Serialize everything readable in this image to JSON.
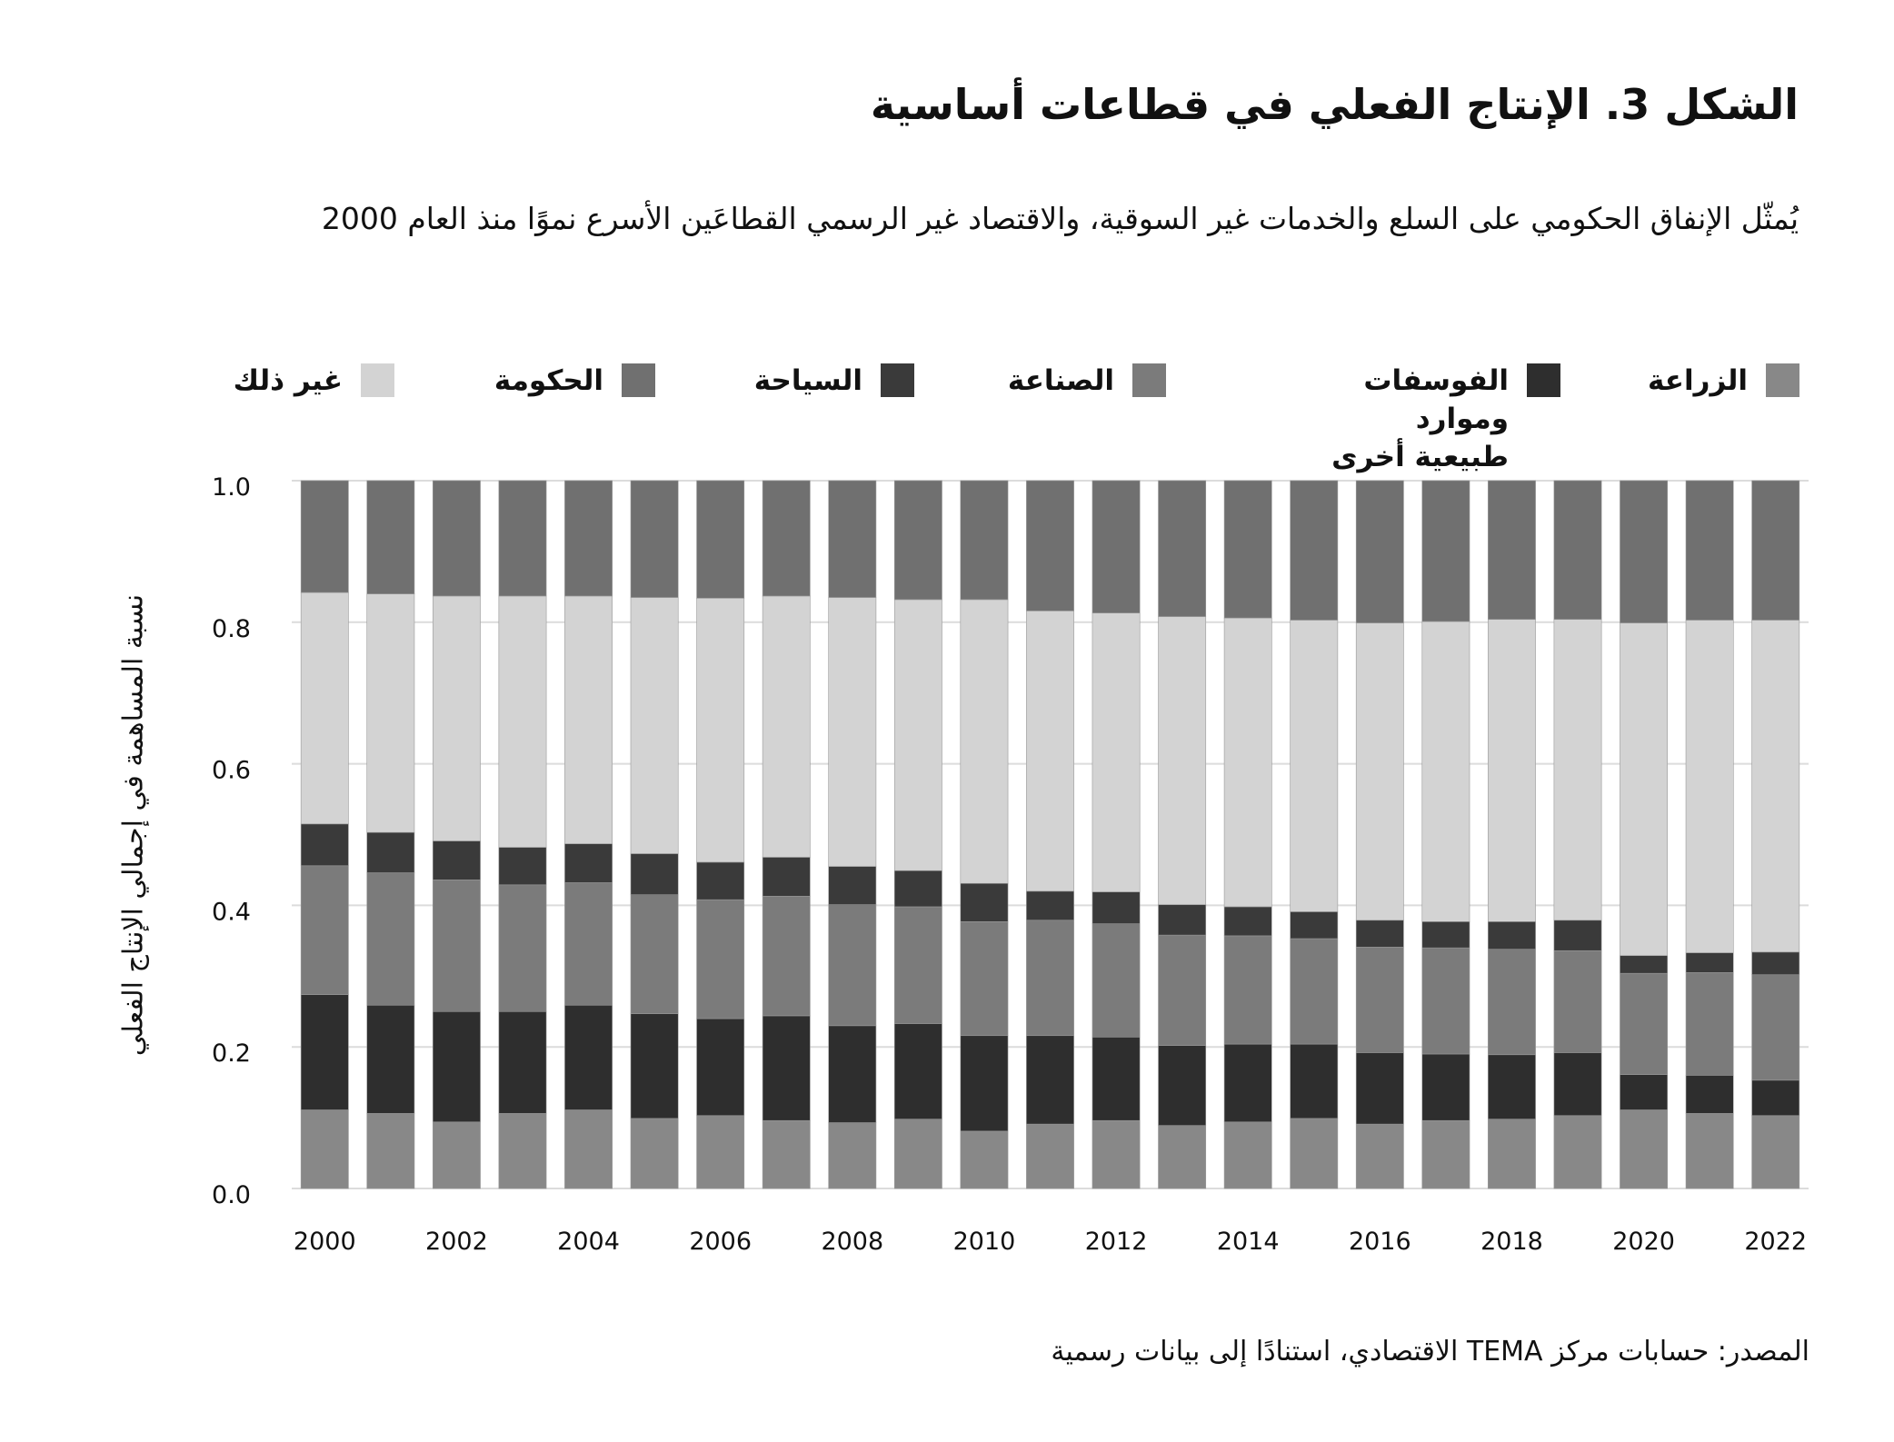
{
  "title": "الشكل 3. الإنتاج الفعلي في قطاعات أساسية",
  "subtitle": "يُمثّل الإنفاق الحكومي على السلع والخدمات غير السوقية، والاقتصاد غير الرسمي القطاعَين الأسرع نموًا منذ العام 2000",
  "source": "المصدر: حسابات مركز TEMA الاقتصادي، استنادًا إلى بيانات رسمية",
  "chart_data": {
    "type": "bar",
    "stacked": true,
    "ylabel": "نسبة المساهمة في إجمالي الإنتاج الفعلي",
    "xlabel": "",
    "ylim": [
      0,
      1.0
    ],
    "yticks": [
      "0.0",
      "0.2",
      "0.4",
      "0.6",
      "0.8",
      "1.0"
    ],
    "xtick_labels": [
      "2000",
      "2002",
      "2004",
      "2006",
      "2008",
      "2010",
      "2012",
      "2014",
      "2016",
      "2018",
      "2020",
      "2022"
    ],
    "grid": true,
    "legend_position": "top",
    "categories": [
      "2000",
      "2001",
      "2002",
      "2003",
      "2004",
      "2005",
      "2006",
      "2007",
      "2008",
      "2009",
      "2010",
      "2011",
      "2012",
      "2013",
      "2014",
      "2015",
      "2016",
      "2017",
      "2018",
      "2019",
      "2020",
      "2021",
      "2022"
    ],
    "series": [
      {
        "name": "الزراعة",
        "color": "#888888",
        "values": [
          0.111,
          0.106,
          0.094,
          0.106,
          0.111,
          0.099,
          0.103,
          0.096,
          0.093,
          0.098,
          0.081,
          0.091,
          0.096,
          0.089,
          0.094,
          0.099,
          0.091,
          0.096,
          0.098,
          0.103,
          0.111,
          0.106,
          0.103
        ]
      },
      {
        "name": "الفوسفات وموارد طبيعية أخرى",
        "color": "#2e2e2e",
        "values": [
          0.163,
          0.153,
          0.156,
          0.144,
          0.148,
          0.148,
          0.137,
          0.148,
          0.137,
          0.135,
          0.135,
          0.125,
          0.118,
          0.113,
          0.11,
          0.105,
          0.101,
          0.094,
          0.091,
          0.089,
          0.05,
          0.054,
          0.05
        ]
      },
      {
        "name": "الصناعة",
        "color": "#7b7b7b",
        "values": [
          0.182,
          0.187,
          0.186,
          0.179,
          0.173,
          0.168,
          0.168,
          0.169,
          0.171,
          0.165,
          0.161,
          0.163,
          0.16,
          0.156,
          0.153,
          0.149,
          0.149,
          0.15,
          0.149,
          0.144,
          0.143,
          0.145,
          0.149
        ]
      },
      {
        "name": "السياحة",
        "color": "#3a3a3a",
        "values": [
          0.059,
          0.057,
          0.055,
          0.053,
          0.055,
          0.058,
          0.053,
          0.055,
          0.054,
          0.051,
          0.054,
          0.041,
          0.045,
          0.043,
          0.041,
          0.038,
          0.038,
          0.037,
          0.039,
          0.043,
          0.025,
          0.028,
          0.032
        ]
      },
      {
        "name": "غير ذلك",
        "color": "#d3d3d3",
        "values": [
          0.327,
          0.337,
          0.346,
          0.355,
          0.35,
          0.362,
          0.373,
          0.369,
          0.38,
          0.383,
          0.401,
          0.396,
          0.394,
          0.407,
          0.408,
          0.412,
          0.42,
          0.424,
          0.427,
          0.425,
          0.47,
          0.47,
          0.469
        ]
      },
      {
        "name": "الحكومة",
        "color": "#707070",
        "values": [
          0.158,
          0.16,
          0.163,
          0.163,
          0.163,
          0.165,
          0.166,
          0.163,
          0.165,
          0.168,
          0.168,
          0.184,
          0.187,
          0.192,
          0.194,
          0.197,
          0.201,
          0.199,
          0.196,
          0.196,
          0.201,
          0.197,
          0.197
        ]
      }
    ],
    "legend_order": [
      "الزراعة",
      "الفوسفات وموارد طبيعية أخرى",
      "الصناعة",
      "السياحة",
      "الحكومة",
      "غير ذلك"
    ]
  }
}
